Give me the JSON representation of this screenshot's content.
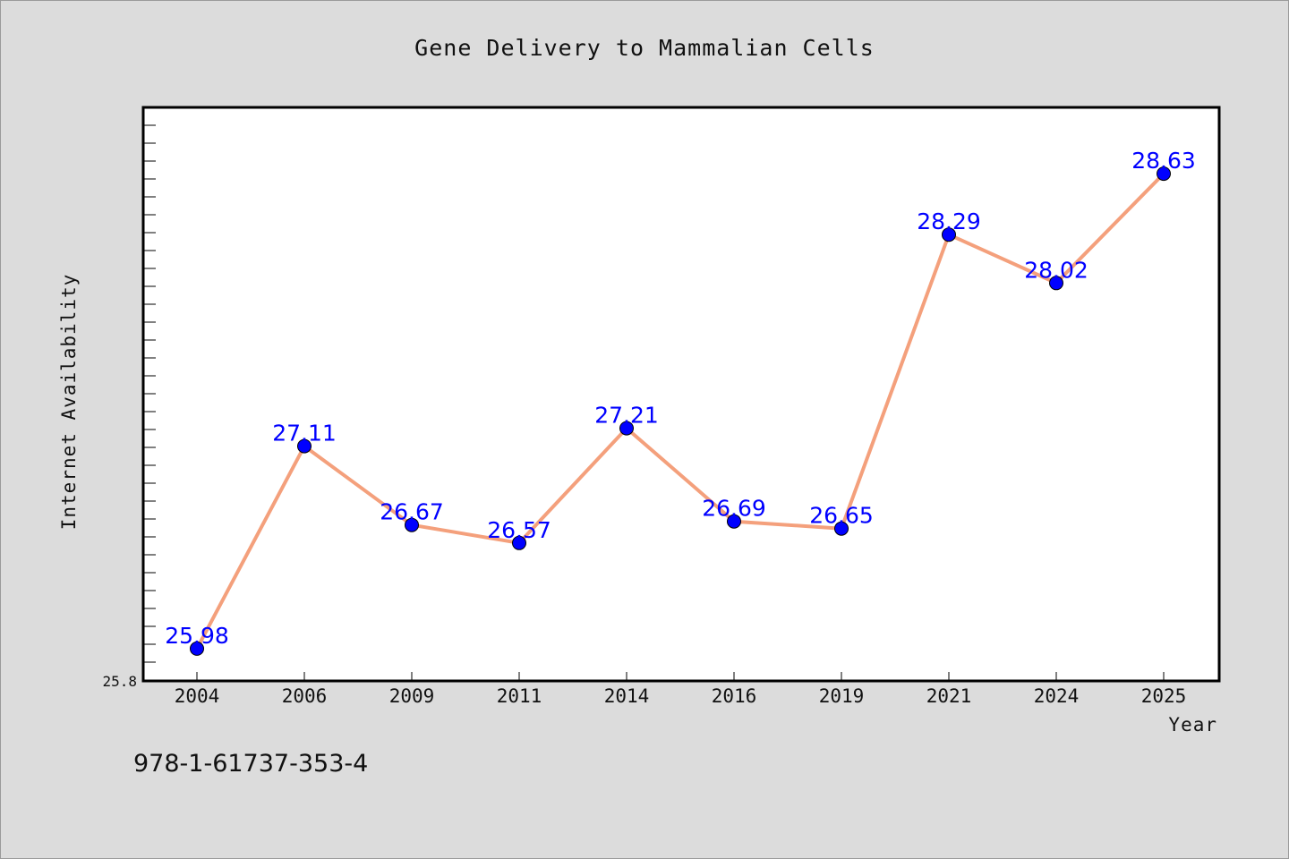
{
  "chart_data": {
    "type": "line",
    "title": "Gene Delivery to Mammalian Cells",
    "xlabel": "Year",
    "ylabel": "Internet Availability",
    "categories": [
      "2004",
      "2006",
      "2009",
      "2011",
      "2014",
      "2016",
      "2019",
      "2021",
      "2024",
      "2025"
    ],
    "series": [
      {
        "values": [
          25.98,
          27.11,
          26.67,
          26.57,
          27.21,
          26.69,
          26.65,
          28.29,
          28.02,
          28.63
        ],
        "data_labels": [
          "25.98",
          "27.11",
          "26.67",
          "26.57",
          "27.21",
          "26.69",
          "26.65",
          "28.29",
          "28.02",
          "28.63"
        ]
      }
    ],
    "y_tick_label": "25.8",
    "ylim": [
      25.8,
      29.0
    ],
    "line_color": "#f4a07c",
    "marker_color": "#0000ff",
    "label_color": "#0000ff",
    "grid": false,
    "legend": "none"
  },
  "footer": {
    "isbn": "978-1-61737-353-4"
  }
}
